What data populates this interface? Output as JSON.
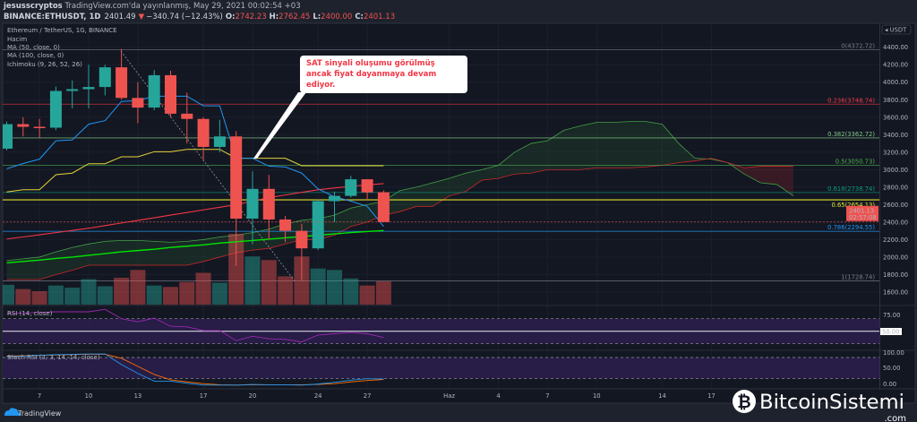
{
  "header": {
    "author": "jesusscryptos",
    "published": "TradingView.com'da yayınlanmış, May 29, 2021 00:02:54 +03",
    "symbol": "BINANCE:ETHUSDT, 1D",
    "last": "2401.49",
    "change": "−340.74 (−12.43%)",
    "o_label": "O:",
    "o": "2742.23",
    "h_label": "H:",
    "h": "2762.45",
    "l_label": "L:",
    "l": "2400.00",
    "c_label": "C:",
    "c": "2401.13"
  },
  "legend": [
    "Ethereum / TetherUS, 1G, BINANCE",
    "Hacim",
    "MA (50, close, 0)",
    "MA (100, close, 0)",
    "Ichimoku (9, 26, 52, 26)"
  ],
  "price_axis": {
    "currency": "USDT",
    "ticks": [
      1600,
      1800,
      2000,
      2200,
      2400,
      2600,
      2800,
      3000,
      3200,
      3400,
      3600,
      3800,
      4000,
      4200,
      4400
    ],
    "current_price": "2401.13",
    "countdown": "02:57:08"
  },
  "fib_levels": [
    {
      "label": "0(4372.72)",
      "price": 4372.72,
      "color": "#787b86"
    },
    {
      "label": "0.236(3748.74)",
      "price": 3748.74,
      "color": "#f23645"
    },
    {
      "label": "0.382(3362.72)",
      "price": 3362.72,
      "color": "#81c784"
    },
    {
      "label": "0.5(3050.73)",
      "price": 3050.73,
      "color": "#4caf50"
    },
    {
      "label": "0.618(2738.74)",
      "price": 2738.74,
      "color": "#089981"
    },
    {
      "label": "0.65(2654.13)",
      "price": 2654.13,
      "color": "#e5e52e"
    },
    {
      "label": "0.786(2294.55)",
      "price": 2294.55,
      "color": "#2196f3"
    },
    {
      "label": "1(1728.74)",
      "price": 1728.74,
      "color": "#787b86"
    }
  ],
  "callout": {
    "lines": [
      "SAT sinyali oluşumu görülmüş",
      "ancak fiyat dayanmaya devam",
      "ediyor."
    ],
    "color": "#f23645"
  },
  "colors": {
    "up": "#26a69a",
    "down": "#ef5350",
    "tenkan": "#2196f3",
    "kijun": "#e6d33a",
    "ma50": "#f23645",
    "ma100": "#00e600",
    "spanA": "#43a047",
    "spanB": "#c62828",
    "rsi": "#9c27b0",
    "stochK": "#2196f3",
    "stochD": "#ff6d00"
  },
  "chart_data": {
    "type": "candlestick",
    "dates": [
      "2021-05-05",
      "2021-05-06",
      "2021-05-07",
      "2021-05-08",
      "2021-05-09",
      "2021-05-10",
      "2021-05-11",
      "2021-05-12",
      "2021-05-13",
      "2021-05-14",
      "2021-05-15",
      "2021-05-16",
      "2021-05-17",
      "2021-05-18",
      "2021-05-19",
      "2021-05-20",
      "2021-05-21",
      "2021-05-22",
      "2021-05-23",
      "2021-05-24",
      "2021-05-25",
      "2021-05-26",
      "2021-05-27",
      "2021-05-28"
    ],
    "ohlc": [
      [
        3240,
        3550,
        3220,
        3520
      ],
      [
        3520,
        3600,
        3380,
        3490
      ],
      [
        3490,
        3580,
        3360,
        3480
      ],
      [
        3480,
        3950,
        3450,
        3900
      ],
      [
        3900,
        4020,
        3700,
        3920
      ],
      [
        3920,
        4200,
        3700,
        3945
      ],
      [
        3945,
        4200,
        3850,
        4170
      ],
      [
        4170,
        4380,
        3800,
        3820
      ],
      [
        3820,
        4000,
        3530,
        3710
      ],
      [
        3710,
        4140,
        3680,
        4080
      ],
      [
        4080,
        4130,
        3600,
        3640
      ],
      [
        3640,
        3880,
        3300,
        3580
      ],
      [
        3580,
        3600,
        3100,
        3260
      ],
      [
        3260,
        3570,
        3200,
        3380
      ],
      [
        3380,
        3440,
        1900,
        2440
      ],
      [
        2440,
        2980,
        2150,
        2780
      ],
      [
        2780,
        2940,
        2200,
        2430
      ],
      [
        2430,
        2470,
        2170,
        2300
      ],
      [
        2300,
        2380,
        1730,
        2100
      ],
      [
        2100,
        2660,
        2080,
        2640
      ],
      [
        2640,
        2750,
        2400,
        2700
      ],
      [
        2700,
        2930,
        2680,
        2890
      ],
      [
        2890,
        2890,
        2650,
        2740
      ],
      [
        2742.23,
        2762.45,
        2400,
        2401.13
      ]
    ],
    "volume_relative": [
      28,
      22,
      19,
      27,
      24,
      36,
      26,
      38,
      49,
      27,
      25,
      32,
      45,
      31,
      100,
      68,
      63,
      40,
      68,
      51,
      49,
      37,
      27,
      33
    ],
    "ma50": [
      2207,
      2230,
      2255,
      2280,
      2305,
      2330,
      2360,
      2390,
      2420,
      2450,
      2480,
      2510,
      2540,
      2570,
      2600,
      2640,
      2680,
      2710,
      2740,
      2770,
      2790,
      2810,
      2825,
      2840
    ],
    "ma100": [
      1935,
      1950,
      1965,
      1985,
      2000,
      2020,
      2040,
      2060,
      2075,
      2090,
      2110,
      2125,
      2140,
      2160,
      2175,
      2190,
      2205,
      2220,
      2235,
      2250,
      2265,
      2280,
      2292,
      2304
    ],
    "tenkan": [
      3010,
      3070,
      3120,
      3330,
      3340,
      3520,
      3560,
      3780,
      3790,
      3840,
      3840,
      3840,
      3730,
      3730,
      3130,
      3130,
      3040,
      3030,
      2960,
      2780,
      2690,
      2640,
      2580,
      2350
    ],
    "kijun": [
      2745,
      2770,
      2770,
      2942,
      2960,
      3068,
      3068,
      3147,
      3147,
      3205,
      3205,
      3232,
      3232,
      3232,
      3130,
      3130,
      3130,
      3130,
      3045,
      3045,
      3045,
      3045,
      3045,
      3045
    ],
    "span_a": [
      1960,
      1980,
      2000,
      2060,
      2110,
      2150,
      2180,
      2190,
      2190,
      2180,
      2170,
      2180,
      2200,
      2230,
      2250,
      2280,
      2320,
      2380,
      2420,
      2440,
      2480,
      2560,
      2600,
      2640,
      2760,
      2800,
      2850,
      2900,
      2960,
      3000,
      3050,
      3200,
      3300,
      3330,
      3450,
      3500,
      3540,
      3540,
      3550,
      3550,
      3520,
      3300,
      3130,
      3120,
      3080,
      2950,
      2850,
      2830,
      2700
    ],
    "span_b": [
      1743,
      1743,
      1743,
      1800,
      1850,
      1907,
      1907,
      1907,
      1907,
      1907,
      1907,
      1907,
      1950,
      2000,
      2050,
      2080,
      2100,
      2150,
      2200,
      2200,
      2250,
      2350,
      2400,
      2480,
      2520,
      2580,
      2580,
      2700,
      2750,
      2880,
      2900,
      2950,
      2960,
      3000,
      3000,
      3000,
      3020,
      3020,
      3020,
      3030,
      3050,
      3080,
      3100,
      3130,
      3080,
      3020,
      3040,
      3040,
      3040
    ],
    "cloud_start": "2021-05-05",
    "x_ticks": [
      {
        "label": "7",
        "date": "2021-05-07"
      },
      {
        "label": "10",
        "date": "2021-05-10"
      },
      {
        "label": "13",
        "date": "2021-05-13"
      },
      {
        "label": "17",
        "date": "2021-05-17"
      },
      {
        "label": "20",
        "date": "2021-05-20"
      },
      {
        "label": "24",
        "date": "2021-05-24"
      },
      {
        "label": "27",
        "date": "2021-05-27"
      },
      {
        "label": "Haz",
        "date": "2021-06-01"
      },
      {
        "label": "4",
        "date": "2021-06-04"
      },
      {
        "label": "7",
        "date": "2021-06-07"
      },
      {
        "label": "10",
        "date": "2021-06-10"
      },
      {
        "label": "14",
        "date": "2021-06-14"
      },
      {
        "label": "17",
        "date": "2021-06-17"
      }
    ],
    "ylim": [
      1550,
      4500
    ]
  },
  "rsi": {
    "title": "RSI (14, close)",
    "values": [
      78,
      79,
      80,
      81,
      81,
      81,
      85,
      70,
      65,
      71,
      58,
      57,
      51,
      51,
      35,
      42,
      38,
      37,
      33,
      44,
      46,
      48,
      46,
      40
    ],
    "upper": 70,
    "lower": 30,
    "axis_labels": [
      "75.00",
      "50.00"
    ]
  },
  "stoch": {
    "title": "Stoch RSI (3, 3, 14, 14, close)",
    "k": [
      82,
      84,
      86,
      88,
      89,
      90,
      90,
      60,
      35,
      13,
      13,
      7,
      2,
      2,
      2,
      4,
      3,
      3,
      2,
      5,
      10,
      16,
      20,
      19
    ],
    "d": [
      84,
      85,
      86,
      87,
      88,
      89,
      89,
      78,
      55,
      32,
      17,
      11,
      6,
      3,
      2,
      3,
      3,
      3,
      3,
      4,
      6,
      11,
      15,
      18
    ],
    "upper": 80,
    "lower": 20,
    "axis_labels": [
      "100.00",
      "50.00",
      "0.00"
    ]
  },
  "footer": {
    "brand": "TradingView"
  },
  "watermark": {
    "name": "BitcoinSistemi",
    "suffix": ".com"
  }
}
